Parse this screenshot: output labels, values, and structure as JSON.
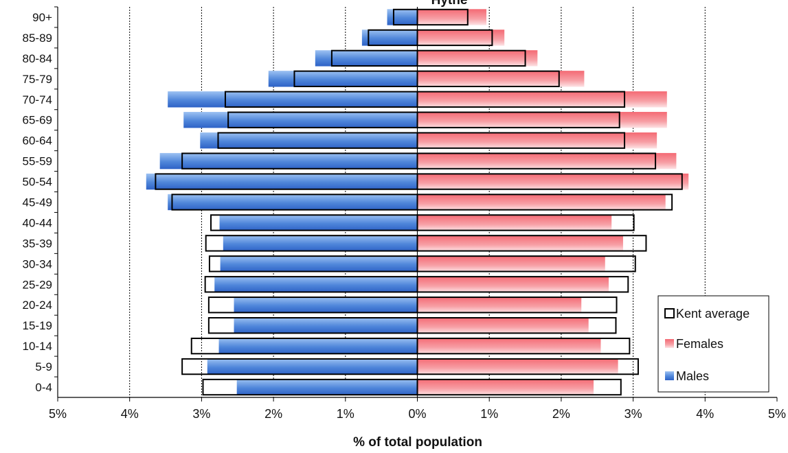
{
  "chart_data": {
    "type": "bar",
    "orientation": "horizontal",
    "layout": "population-pyramid",
    "title": "Hythe",
    "xlabel": "% of total population",
    "ylabel": "",
    "xlim": [
      -5,
      5
    ],
    "x_ticks": [
      -5,
      -4,
      -3,
      -2,
      -1,
      0,
      1,
      2,
      3,
      4,
      5
    ],
    "x_tick_labels": [
      "5%",
      "4%",
      "3%",
      "2%",
      "1%",
      "0%",
      "1%",
      "2%",
      "3%",
      "4%",
      "5%"
    ],
    "grid": "vertical dotted at each 1%",
    "legend_position": "bottom-right",
    "categories": [
      "90+",
      "85-89",
      "80-84",
      "75-79",
      "70-74",
      "65-69",
      "60-64",
      "55-59",
      "50-54",
      "45-49",
      "40-44",
      "35-39",
      "30-34",
      "25-29",
      "20-24",
      "15-19",
      "10-14",
      "5-9",
      "0-4"
    ],
    "series": [
      {
        "name": "Males",
        "side": "left",
        "color": "#3a6fd0",
        "values": [
          0.42,
          0.77,
          1.42,
          2.07,
          3.47,
          3.25,
          3.02,
          3.58,
          3.77,
          3.47,
          2.75,
          2.7,
          2.74,
          2.82,
          2.55,
          2.55,
          2.76,
          2.92,
          2.51
        ]
      },
      {
        "name": "Females",
        "side": "right",
        "color": "#f07f87",
        "values": [
          0.96,
          1.21,
          1.67,
          2.32,
          3.47,
          3.47,
          3.33,
          3.6,
          3.77,
          3.45,
          2.7,
          2.86,
          2.61,
          2.66,
          2.28,
          2.38,
          2.55,
          2.79,
          2.45
        ]
      },
      {
        "name": "Kent average",
        "style": "outline",
        "male_values": [
          0.33,
          0.68,
          1.19,
          1.71,
          2.67,
          2.63,
          2.77,
          3.27,
          3.64,
          3.41,
          2.87,
          2.94,
          2.89,
          2.95,
          2.9,
          2.9,
          3.14,
          3.27,
          2.98
        ],
        "female_values": [
          0.7,
          1.04,
          1.5,
          1.97,
          2.88,
          2.81,
          2.88,
          3.31,
          3.68,
          3.54,
          3.01,
          3.18,
          3.03,
          2.93,
          2.77,
          2.76,
          2.95,
          3.07,
          2.83
        ]
      }
    ]
  }
}
